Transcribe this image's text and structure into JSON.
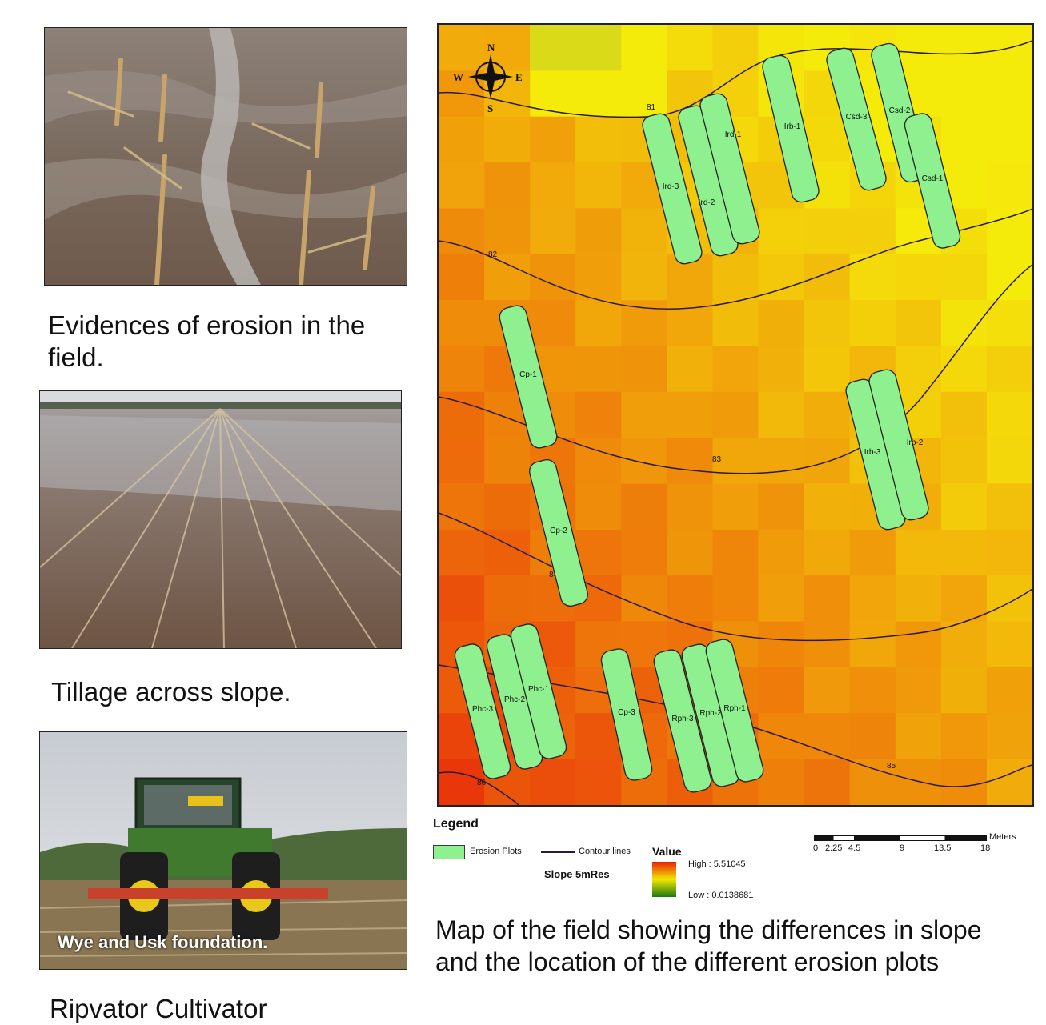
{
  "photos": {
    "erosion": {
      "caption": "Evidences of erosion in the field."
    },
    "tillage": {
      "caption": "Tillage across slope."
    },
    "tractor": {
      "overlay_text": "Wye and Usk foundation.",
      "caption": "Ripvator Cultivator"
    }
  },
  "map": {
    "compass": {
      "n": "N",
      "s": "S",
      "e": "E",
      "w": "W"
    },
    "plots": [
      {
        "id": "plot-ird-3",
        "label": "Ird-3"
      },
      {
        "id": "plot-ird-2",
        "label": "Ird-2"
      },
      {
        "id": "plot-ird-1",
        "label": "Ird-1"
      },
      {
        "id": "plot-irb-1",
        "label": "Irb-1"
      },
      {
        "id": "plot-csd-3",
        "label": "Csd-3"
      },
      {
        "id": "plot-csd-2",
        "label": "Csd-2"
      },
      {
        "id": "plot-csd-1",
        "label": "Csd-1"
      },
      {
        "id": "plot-cp-1",
        "label": "Cp-1"
      },
      {
        "id": "plot-irb-3",
        "label": "Irb-3"
      },
      {
        "id": "plot-irb-2",
        "label": "Irb-2"
      },
      {
        "id": "plot-cp-2",
        "label": "Cp-2"
      },
      {
        "id": "plot-phc-3",
        "label": "Phc-3"
      },
      {
        "id": "plot-phc-2",
        "label": "Phc-2"
      },
      {
        "id": "plot-phc-1",
        "label": "Phc-1"
      },
      {
        "id": "plot-cp-3",
        "label": "Cp-3"
      },
      {
        "id": "plot-rph-3",
        "label": "Rph-3"
      },
      {
        "id": "plot-rph-2",
        "label": "Rph-2"
      },
      {
        "id": "plot-rph-1",
        "label": "Rph-1"
      }
    ],
    "contours": [
      "81",
      "82",
      "83",
      "84",
      "85",
      "86"
    ],
    "legend": {
      "title": "Legend",
      "erosion_plots": "Erosion Plots",
      "contour_lines": "Contour lines",
      "value_title": "Value",
      "layer_name": "Slope 5mRes",
      "high": "High : 5.51045",
      "low": "Low : 0.0138681",
      "colors": {
        "high": "#e8200a",
        "mid": "#f0e800",
        "low": "#1c7a12",
        "plots": "#8ef08e"
      }
    },
    "scale": {
      "unit": "Meters",
      "ticks": [
        "0",
        "2.25",
        "4.5",
        "9",
        "13.5",
        "18"
      ]
    },
    "caption": "Map of the field showing the differences in slope and the location of the different erosion plots"
  }
}
